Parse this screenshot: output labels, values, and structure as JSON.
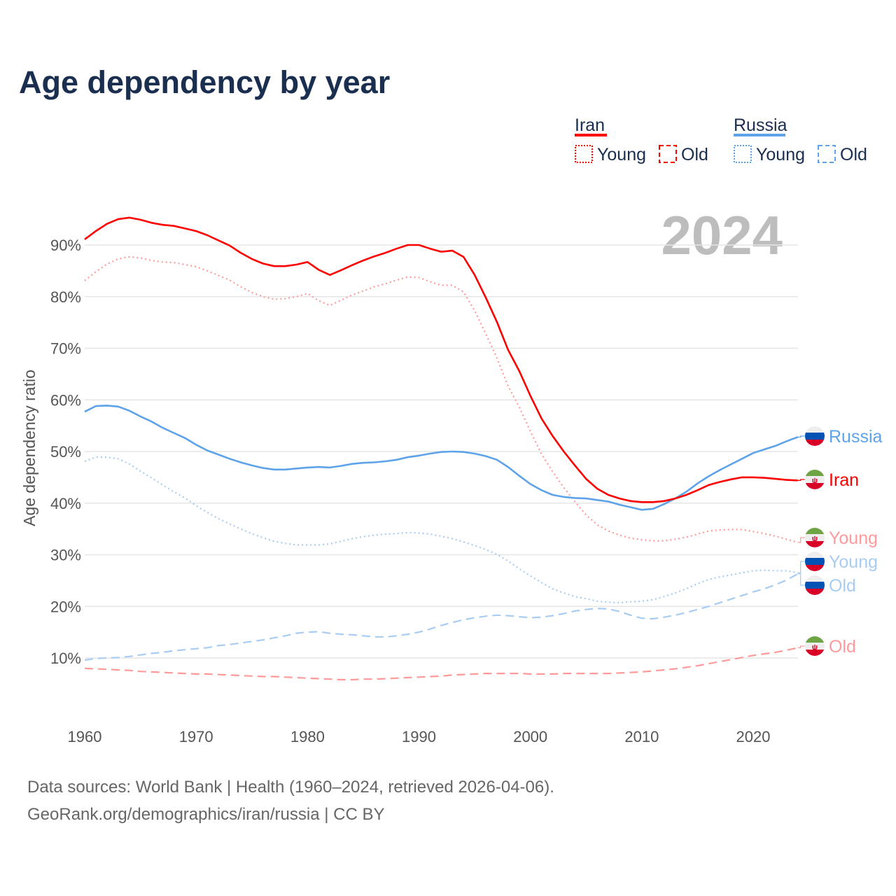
{
  "chart_data": {
    "type": "line",
    "title": "Age dependency by year",
    "ylabel": "Age dependency ratio",
    "xlabel": "",
    "year_display": "2024",
    "xlim": [
      1960,
      2024
    ],
    "ylim": [
      0,
      95
    ],
    "x_ticks": [
      1960,
      1970,
      1980,
      1990,
      2000,
      2010,
      2020
    ],
    "x_tick_labels": [
      "1960",
      "1970",
      "1980",
      "1990",
      "2000",
      "2010",
      "2020"
    ],
    "y_ticks": [
      10,
      20,
      30,
      40,
      50,
      60,
      70,
      80,
      90
    ],
    "y_tick_labels": [
      "10%",
      "20%",
      "30%",
      "40%",
      "50%",
      "60%",
      "70%",
      "80%",
      "90%"
    ],
    "grid": true,
    "legend": {
      "placement": "top-right",
      "groups": [
        {
          "name": "Iran",
          "color": "#ff0000",
          "young": "Young",
          "old": "Old"
        },
        {
          "name": "Russia",
          "color": "#5ea3ea",
          "young": "Young",
          "old": "Old"
        }
      ]
    },
    "start_year": 1960,
    "series": [
      {
        "id": "iran-total",
        "name": "Iran",
        "end_label": "Iran",
        "flag": "iran",
        "style": "solid",
        "color": "#ff0000",
        "values": [
          91.1,
          92.7,
          94.1,
          95.0,
          95.3,
          94.9,
          94.3,
          93.9,
          93.7,
          93.2,
          92.7,
          91.9,
          90.9,
          89.9,
          88.5,
          87.3,
          86.4,
          85.9,
          85.9,
          86.2,
          86.7,
          85.2,
          84.2,
          85.1,
          86.1,
          87.0,
          87.8,
          88.5,
          89.3,
          90.0,
          90.0,
          89.3,
          88.7,
          88.9,
          87.7,
          84.2,
          79.8,
          75.1,
          69.7,
          65.6,
          60.8,
          56.4,
          53.0,
          50.0,
          47.3,
          44.7,
          42.8,
          41.6,
          40.9,
          40.4,
          40.2,
          40.2,
          40.4,
          40.9,
          41.6,
          42.5,
          43.5,
          44.1,
          44.6,
          45.0,
          45.0,
          44.9,
          44.7,
          44.5,
          44.4
        ]
      },
      {
        "id": "iran-young",
        "name": "Iran Young",
        "end_label": "Young",
        "flag": "iran",
        "style": "dotted",
        "color": "#ff9a9a",
        "values": [
          83.1,
          84.8,
          86.3,
          87.3,
          87.7,
          87.5,
          87.0,
          86.7,
          86.6,
          86.2,
          85.8,
          85.0,
          84.1,
          83.2,
          81.9,
          80.8,
          80.0,
          79.5,
          79.6,
          80.0,
          80.6,
          79.2,
          78.3,
          79.3,
          80.3,
          81.1,
          81.9,
          82.5,
          83.2,
          83.8,
          83.7,
          82.9,
          82.2,
          82.2,
          80.9,
          77.3,
          72.8,
          68.1,
          62.7,
          58.6,
          53.9,
          49.5,
          46.1,
          43.0,
          40.3,
          37.7,
          35.8,
          34.6,
          33.8,
          33.2,
          32.9,
          32.7,
          32.7,
          33.0,
          33.4,
          34.0,
          34.6,
          34.8,
          34.9,
          34.9,
          34.5,
          34.1,
          33.6,
          33.0,
          32.4
        ]
      },
      {
        "id": "iran-old",
        "name": "Iran Old",
        "end_label": "Old",
        "flag": "iran",
        "style": "dashed",
        "color": "#ff9a9a",
        "values": [
          8.0,
          7.9,
          7.8,
          7.7,
          7.6,
          7.4,
          7.3,
          7.2,
          7.1,
          7.0,
          6.9,
          6.9,
          6.8,
          6.7,
          6.6,
          6.5,
          6.4,
          6.4,
          6.3,
          6.2,
          6.1,
          6.0,
          5.9,
          5.8,
          5.8,
          5.9,
          5.9,
          6.0,
          6.1,
          6.2,
          6.3,
          6.4,
          6.5,
          6.7,
          6.8,
          6.9,
          7.0,
          7.0,
          7.0,
          7.0,
          6.9,
          6.9,
          6.9,
          7.0,
          7.0,
          7.0,
          7.0,
          7.0,
          7.1,
          7.2,
          7.3,
          7.5,
          7.7,
          7.9,
          8.2,
          8.5,
          8.9,
          9.3,
          9.7,
          10.1,
          10.5,
          10.8,
          11.1,
          11.5,
          12.0
        ]
      },
      {
        "id": "russia-total",
        "name": "Russia",
        "end_label": "Russia",
        "flag": "russia",
        "style": "solid",
        "color": "#5ea3ea",
        "values": [
          57.7,
          58.8,
          58.9,
          58.7,
          57.9,
          56.8,
          55.8,
          54.6,
          53.6,
          52.6,
          51.3,
          50.2,
          49.4,
          48.6,
          47.9,
          47.3,
          46.8,
          46.5,
          46.5,
          46.7,
          46.9,
          47.0,
          46.9,
          47.2,
          47.6,
          47.8,
          47.9,
          48.1,
          48.4,
          48.9,
          49.2,
          49.6,
          49.9,
          50.0,
          49.9,
          49.6,
          49.1,
          48.4,
          47.0,
          45.3,
          43.7,
          42.5,
          41.6,
          41.2,
          41.0,
          40.9,
          40.6,
          40.3,
          39.7,
          39.2,
          38.7,
          38.9,
          39.8,
          40.9,
          42.2,
          43.8,
          45.2,
          46.4,
          47.5,
          48.6,
          49.7,
          50.4,
          51.1,
          52.0,
          52.8
        ]
      },
      {
        "id": "russia-young",
        "name": "Russia Young",
        "end_label": "Young",
        "flag": "russia",
        "style": "dotted",
        "color": "#a8ccf2",
        "values": [
          48.1,
          48.9,
          48.9,
          48.6,
          47.6,
          46.2,
          44.9,
          43.5,
          42.2,
          41.0,
          39.5,
          38.2,
          37.0,
          36.0,
          35.0,
          34.1,
          33.3,
          32.6,
          32.2,
          31.9,
          31.9,
          31.9,
          32.1,
          32.6,
          33.1,
          33.5,
          33.8,
          34.0,
          34.1,
          34.3,
          34.2,
          34.0,
          33.6,
          33.1,
          32.5,
          31.8,
          31.0,
          30.1,
          28.8,
          27.3,
          25.9,
          24.6,
          23.4,
          22.6,
          21.9,
          21.5,
          21.0,
          20.8,
          20.7,
          20.9,
          21.0,
          21.3,
          21.9,
          22.6,
          23.4,
          24.4,
          25.2,
          25.7,
          26.1,
          26.5,
          26.9,
          27.0,
          26.9,
          26.9,
          26.5
        ]
      },
      {
        "id": "russia-old",
        "name": "Russia Old",
        "end_label": "Old",
        "flag": "russia",
        "style": "dashed",
        "color": "#a8ccf2",
        "values": [
          9.6,
          9.9,
          10.0,
          10.1,
          10.3,
          10.6,
          10.9,
          11.1,
          11.4,
          11.6,
          11.8,
          12.0,
          12.4,
          12.6,
          12.9,
          13.2,
          13.5,
          13.9,
          14.3,
          14.8,
          15.0,
          15.1,
          14.8,
          14.6,
          14.5,
          14.3,
          14.1,
          14.1,
          14.3,
          14.6,
          15.0,
          15.6,
          16.3,
          16.9,
          17.4,
          17.8,
          18.1,
          18.3,
          18.2,
          18.0,
          17.8,
          17.9,
          18.2,
          18.6,
          19.1,
          19.4,
          19.6,
          19.5,
          19.0,
          18.3,
          17.7,
          17.6,
          17.9,
          18.3,
          18.8,
          19.4,
          20.0,
          20.7,
          21.4,
          22.1,
          22.8,
          23.4,
          24.2,
          25.1,
          26.3
        ]
      }
    ]
  },
  "footer": {
    "line1": "Data sources: World Bank | Health (1960–2024, retrieved 2026-04-06).",
    "line2": "GeoRank.org/demographics/iran/russia | CC BY"
  }
}
